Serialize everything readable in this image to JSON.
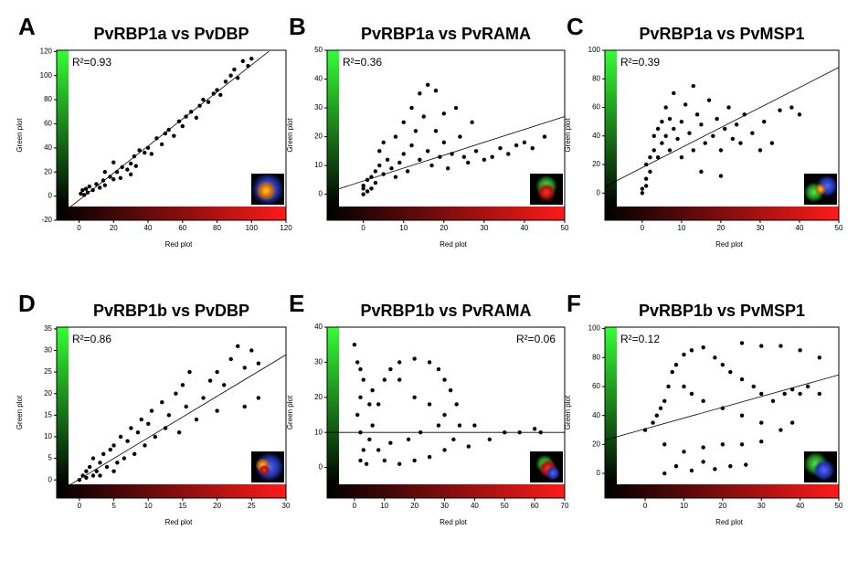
{
  "chart_data": [
    {
      "type": "scatter",
      "panel": "A",
      "title": "PvRBP1a vs PvDBP",
      "x_label": "Red plot",
      "y_label": "Green plot",
      "annotation": "R²=0.93",
      "annotation_corner": "top-left",
      "color": "#000000",
      "xlim": [
        -13,
        120
      ],
      "ylim": [
        -20,
        121
      ],
      "xticks": [
        0,
        20,
        40,
        60,
        80,
        100,
        120
      ],
      "yticks": [
        -20,
        0,
        20,
        40,
        60,
        80,
        100,
        120
      ],
      "x": [
        1,
        2,
        3,
        4,
        5,
        6,
        8,
        10,
        12,
        14,
        15,
        18,
        20,
        22,
        24,
        25,
        28,
        30,
        32,
        33,
        35,
        38,
        40,
        42,
        45,
        48,
        50,
        52,
        55,
        58,
        60,
        62,
        65,
        68,
        70,
        72,
        75,
        78,
        80,
        82,
        85,
        88,
        90,
        92,
        95,
        100,
        98,
        20,
        15,
        30
      ],
      "values": [
        2,
        5,
        1,
        6,
        3,
        8,
        5,
        10,
        7,
        13,
        9,
        16,
        14,
        20,
        15,
        24,
        22,
        27,
        33,
        25,
        38,
        36,
        40,
        35,
        48,
        43,
        52,
        55,
        50,
        62,
        58,
        66,
        70,
        65,
        75,
        80,
        78,
        85,
        88,
        84,
        95,
        100,
        105,
        98,
        112,
        114,
        108,
        28,
        20,
        18
      ],
      "trend_line": {
        "x": [
          -6,
          110
        ],
        "y": [
          -10,
          120
        ]
      }
    },
    {
      "type": "scatter",
      "panel": "B",
      "title": "PvRBP1a vs PvRAMA",
      "x_label": "Red plot",
      "y_label": "Green plot",
      "annotation": "R²=0.36",
      "annotation_corner": "top-left",
      "color": "#000000",
      "xlim": [
        -9,
        50
      ],
      "ylim": [
        -9,
        50
      ],
      "xticks": [
        0,
        10,
        20,
        30,
        40,
        50
      ],
      "yticks": [
        0,
        10,
        20,
        30,
        40,
        50
      ],
      "x": [
        0,
        0,
        1,
        1,
        0,
        2,
        2,
        3,
        3,
        4,
        4,
        5,
        5,
        6,
        7,
        8,
        8,
        9,
        10,
        10,
        11,
        12,
        12,
        13,
        14,
        14,
        15,
        16,
        16,
        17,
        18,
        18,
        19,
        20,
        20,
        21,
        22,
        23,
        24,
        25,
        26,
        28,
        30,
        32,
        34,
        36,
        38,
        40,
        42,
        45,
        27
      ],
      "values": [
        0,
        2,
        1,
        5,
        3,
        6,
        2,
        8,
        4,
        10,
        15,
        7,
        18,
        12,
        9,
        20,
        6,
        11,
        14,
        25,
        8,
        17,
        30,
        22,
        12,
        35,
        27,
        38,
        15,
        10,
        36,
        22,
        13,
        28,
        18,
        9,
        14,
        30,
        20,
        13,
        11,
        15,
        12,
        13,
        16,
        14,
        17,
        18,
        16,
        20,
        25
      ],
      "trend_line": {
        "x": [
          -7,
          50
        ],
        "y": [
          1.5,
          27
        ]
      }
    },
    {
      "type": "scatter",
      "panel": "C",
      "title": "PvRBP1a vs PvMSP1",
      "x_label": "Red plot",
      "y_label": "Green plot",
      "annotation": "R²=0.39",
      "annotation_corner": "top-left",
      "color": "#000000",
      "xlim": [
        -9.5,
        50
      ],
      "ylim": [
        -19,
        100
      ],
      "xticks": [
        0,
        10,
        20,
        30,
        40,
        50
      ],
      "yticks": [
        0,
        20,
        40,
        60,
        80,
        100
      ],
      "x": [
        0,
        0,
        1,
        1,
        1,
        2,
        2,
        3,
        3,
        4,
        4,
        5,
        5,
        6,
        6,
        7,
        7,
        8,
        8,
        9,
        10,
        10,
        11,
        12,
        13,
        13,
        14,
        15,
        16,
        17,
        18,
        19,
        20,
        21,
        22,
        23,
        24,
        25,
        26,
        28,
        30,
        31,
        33,
        35,
        38,
        40,
        20,
        15
      ],
      "values": [
        0,
        3,
        5,
        10,
        20,
        25,
        15,
        30,
        40,
        45,
        25,
        50,
        35,
        40,
        60,
        30,
        52,
        45,
        70,
        38,
        50,
        25,
        62,
        42,
        75,
        30,
        55,
        48,
        35,
        65,
        40,
        52,
        30,
        45,
        60,
        38,
        48,
        35,
        55,
        42,
        30,
        50,
        35,
        58,
        60,
        55,
        12,
        15
      ],
      "trend_line": {
        "x": [
          -9.5,
          50
        ],
        "y": [
          4.5,
          88
        ]
      }
    },
    {
      "type": "scatter",
      "panel": "D",
      "title": "PvRBP1b vs PvDBP",
      "x_label": "Red plot",
      "y_label": "Green plot",
      "annotation": "R²=0.86",
      "annotation_corner": "top-left",
      "color": "#000000",
      "xlim": [
        -3.3,
        30
      ],
      "ylim": [
        -4.2,
        35.4
      ],
      "xticks": [
        0,
        5,
        10,
        15,
        20,
        25,
        30
      ],
      "yticks": [
        0,
        5,
        10,
        15,
        20,
        25,
        30,
        35
      ],
      "x": [
        0,
        0.5,
        1,
        1,
        1.5,
        2,
        2,
        2.5,
        3,
        3,
        3.5,
        4,
        4.5,
        5,
        5,
        5.5,
        6,
        6.5,
        7,
        7.5,
        8,
        8.5,
        9,
        9.5,
        10,
        10.5,
        11,
        12,
        12.5,
        13,
        14,
        14.5,
        15,
        15.5,
        16,
        17,
        18,
        19,
        20,
        21,
        22,
        23,
        24,
        25,
        26,
        26,
        24,
        20
      ],
      "values": [
        0,
        1,
        2,
        0.5,
        3,
        1,
        5,
        2,
        4,
        1,
        6,
        3,
        7,
        2,
        8,
        4,
        10,
        5,
        9,
        12,
        6,
        11,
        14,
        8,
        13,
        16,
        10,
        18,
        12,
        15,
        20,
        11,
        22,
        17,
        25,
        14,
        19,
        23,
        16,
        22,
        28,
        31,
        26,
        30,
        27,
        19,
        17,
        25
      ],
      "trend_line": {
        "x": [
          -3.3,
          30
        ],
        "y": [
          -3,
          29
        ]
      }
    },
    {
      "type": "scatter",
      "panel": "E",
      "title": "PvRBP1b vs PvRAMA",
      "x_label": "Red plot",
      "y_label": "Green plot",
      "annotation": "R²=0.06",
      "annotation_corner": "top-right",
      "color": "#000000",
      "xlim": [
        -9.1,
        70
      ],
      "ylim": [
        -8.7,
        40
      ],
      "xticks": [
        0,
        10,
        20,
        30,
        40,
        50,
        60,
        70
      ],
      "yticks": [
        0,
        10,
        20,
        30,
        40
      ],
      "x": [
        0,
        1,
        2,
        3,
        2,
        1,
        2,
        3,
        2,
        4,
        5,
        6,
        8,
        10,
        12,
        15,
        20,
        25,
        28,
        30,
        32,
        34,
        35,
        33,
        30,
        25,
        20,
        15,
        10,
        8,
        12,
        18,
        22,
        28,
        40,
        50,
        55,
        60,
        62,
        45,
        38,
        5,
        6,
        20,
        15,
        25,
        30
      ],
      "values": [
        35,
        30,
        28,
        25,
        20,
        15,
        10,
        5,
        2,
        1,
        8,
        12,
        18,
        25,
        28,
        30,
        31,
        30,
        28,
        25,
        22,
        18,
        12,
        8,
        5,
        3,
        2,
        1,
        2,
        5,
        7,
        8,
        10,
        12,
        12,
        10,
        10,
        11,
        10,
        8,
        6,
        18,
        22,
        20,
        25,
        18,
        15
      ],
      "trend_line": {
        "x": [
          -9.1,
          70
        ],
        "y": [
          10,
          10
        ]
      }
    },
    {
      "type": "scatter",
      "panel": "F",
      "title": "PvRBP1b vs PvMSP1",
      "x_label": "Red plot",
      "y_label": "Green plot",
      "annotation": "R²=0.12",
      "annotation_corner": "top-left",
      "color": "#000000",
      "xlim": [
        -10.4,
        50
      ],
      "ylim": [
        -17,
        101
      ],
      "xticks": [
        0,
        10,
        20,
        30,
        40,
        50
      ],
      "yticks": [
        0,
        20,
        40,
        60,
        80,
        100
      ],
      "x": [
        0,
        2,
        3,
        4,
        5,
        6,
        7,
        8,
        10,
        12,
        15,
        18,
        20,
        22,
        25,
        28,
        30,
        33,
        36,
        38,
        40,
        42,
        45,
        35,
        30,
        25,
        40,
        45,
        10,
        12,
        15,
        20,
        25,
        30,
        35,
        38,
        5,
        10,
        15,
        20,
        25,
        30,
        8,
        12,
        18,
        22,
        26,
        5,
        15
      ],
      "values": [
        30,
        35,
        40,
        45,
        50,
        60,
        70,
        75,
        82,
        85,
        87,
        80,
        75,
        70,
        65,
        60,
        55,
        50,
        55,
        58,
        55,
        60,
        55,
        88,
        88,
        90,
        85,
        80,
        60,
        55,
        50,
        45,
        40,
        35,
        30,
        35,
        20,
        15,
        18,
        20,
        20,
        22,
        5,
        2,
        3,
        5,
        6,
        0,
        8
      ],
      "trend_line": {
        "x": [
          -10.4,
          50
        ],
        "y": [
          23,
          68
        ]
      }
    }
  ]
}
